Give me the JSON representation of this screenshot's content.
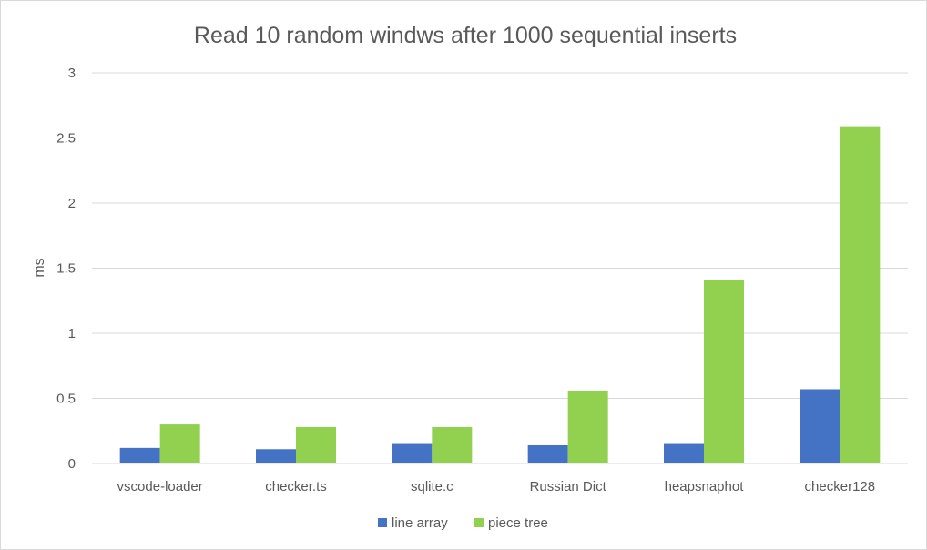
{
  "chart_data": {
    "type": "bar",
    "title": "Read 10 random windws after 1000 sequential inserts",
    "xlabel": "",
    "ylabel": "ms",
    "categories": [
      "vscode-loader",
      "checker.ts",
      "sqlite.c",
      "Russian Dict",
      "heapsnaphot",
      "checker128"
    ],
    "series": [
      {
        "name": "line array",
        "color": "#4472c4",
        "values": [
          0.12,
          0.11,
          0.15,
          0.14,
          0.15,
          0.57
        ]
      },
      {
        "name": "piece tree",
        "color": "#92d050",
        "values": [
          0.3,
          0.28,
          0.28,
          0.56,
          1.41,
          2.59
        ]
      }
    ],
    "ylim": [
      0,
      3
    ],
    "yticks": [
      0,
      0.5,
      1,
      1.5,
      2,
      2.5,
      3
    ],
    "ytick_labels": [
      "0",
      "0.5",
      "1",
      "1.5",
      "2",
      "2.5",
      "3"
    ],
    "grid": true,
    "gridline_color": "#d9d9d9",
    "legend_position": "bottom"
  }
}
